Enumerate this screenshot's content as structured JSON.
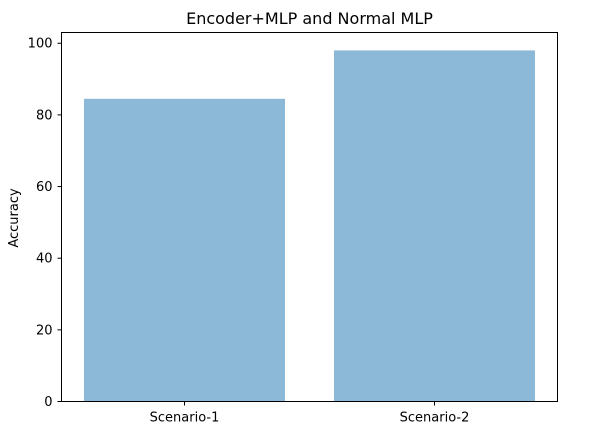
{
  "chart_data": {
    "type": "bar",
    "title": "Encoder+MLP and Normal MLP",
    "xlabel": "",
    "ylabel": "Accuracy",
    "categories": [
      "Scenario-1",
      "Scenario-2"
    ],
    "values": [
      84.5,
      98.0
    ],
    "ylim": [
      0,
      103
    ],
    "yticks": [
      0,
      20,
      40,
      60,
      80,
      100
    ],
    "grid": false,
    "legend": "none",
    "bar_color": "#8db9d9",
    "axis_color": "#000000"
  }
}
